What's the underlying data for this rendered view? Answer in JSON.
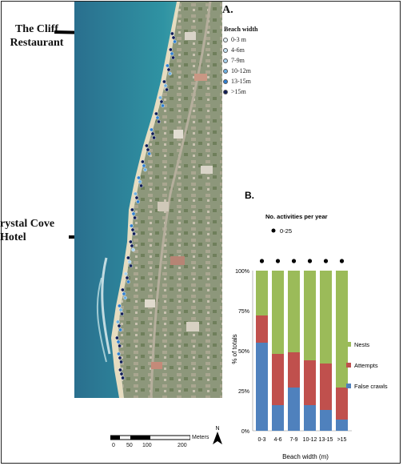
{
  "callouts": {
    "top": "The Cliff Restaurant",
    "bottom": "rystal Cove Hotel"
  },
  "map": {
    "panel_label": "A.",
    "legend": {
      "title": "Beach width",
      "classes": [
        {
          "label": "0-3 m",
          "color": "#e6f4fb"
        },
        {
          "label": "4-6m",
          "color": "#c8e6f5"
        },
        {
          "label": "7-9m",
          "color": "#a9d3ee"
        },
        {
          "label": "10-12m",
          "color": "#6eb0e0"
        },
        {
          "label": "13-15m",
          "color": "#2f7fd0"
        },
        {
          "label": ">15m",
          "color": "#101c55"
        }
      ]
    },
    "scale_bar": {
      "ticks": [
        "0",
        "50",
        "100",
        "200"
      ],
      "unit": "Meters"
    },
    "north_label": "N",
    "colors": {
      "sea": "#2b8a9e",
      "deep_sea": "#2a6f8e",
      "land": "#8e9a7d",
      "beach": "#e6dcc0"
    }
  },
  "chart_data": {
    "panel_label": "B.",
    "type": "bar",
    "stacked": true,
    "categories": [
      "0-3",
      "4-6",
      "7-9",
      "10-12",
      "13-15",
      ">15"
    ],
    "series": [
      {
        "name": "False crawls",
        "color": "#4f81bd",
        "values": [
          55,
          16,
          27,
          16,
          13,
          7
        ]
      },
      {
        "name": "Attempts",
        "color": "#c0504d",
        "values": [
          17,
          32,
          22,
          28,
          29,
          20
        ]
      },
      {
        "name": "Nests",
        "color": "#9bbb59",
        "values": [
          28,
          52,
          51,
          56,
          58,
          73
        ]
      }
    ],
    "legend_order": [
      "Nests",
      "Attempts",
      "False crawls"
    ],
    "ylabel": "% of totals",
    "xlabel": "Beach width (m)",
    "yticks": [
      "0%",
      "25%",
      "50%",
      "75%",
      "100%"
    ],
    "ylim": [
      0,
      100
    ],
    "activity_legend": {
      "title": "No. activities per year",
      "item": "0-25"
    }
  }
}
